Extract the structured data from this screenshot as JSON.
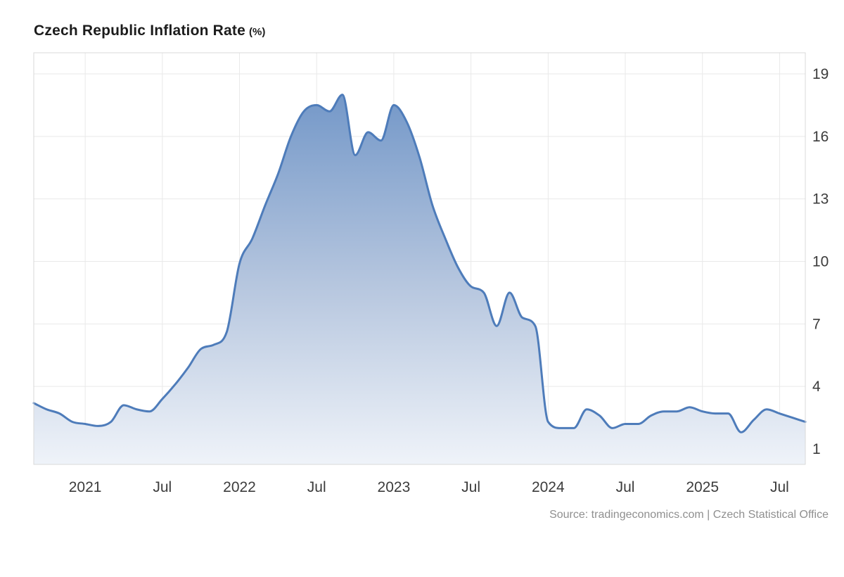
{
  "header": {
    "title": "Czech Republic Inflation Rate",
    "unit": "(%)"
  },
  "footer": {
    "source": "Source: tradingeconomics.com | Czech Statistical Office"
  },
  "chart_data": {
    "type": "area",
    "title": "Czech Republic Inflation Rate (%)",
    "series_name": "Inflation Rate",
    "frequency": "monthly",
    "period_start": "2020-09",
    "period_end": "2025-09",
    "values": [
      3.2,
      2.9,
      2.7,
      2.3,
      2.2,
      2.1,
      2.3,
      3.1,
      2.9,
      2.8,
      3.4,
      4.1,
      4.9,
      5.8,
      6.0,
      6.6,
      9.9,
      11.1,
      12.7,
      14.2,
      16.0,
      17.2,
      17.5,
      17.2,
      18.0,
      15.1,
      16.2,
      15.8,
      17.5,
      16.7,
      15.0,
      12.7,
      11.1,
      9.7,
      8.8,
      8.5,
      6.9,
      8.5,
      7.3,
      6.9,
      2.3,
      2.0,
      2.0,
      2.9,
      2.6,
      2.0,
      2.2,
      2.2,
      2.6,
      2.8,
      2.8,
      3.0,
      2.8,
      2.7,
      2.7,
      1.8,
      2.4,
      2.9,
      2.7,
      2.5,
      2.3
    ],
    "x_ticks": [
      {
        "label": "2021",
        "month_index": 4
      },
      {
        "label": "Jul",
        "month_index": 10
      },
      {
        "label": "2022",
        "month_index": 16
      },
      {
        "label": "Jul",
        "month_index": 22
      },
      {
        "label": "2023",
        "month_index": 28
      },
      {
        "label": "Jul",
        "month_index": 34
      },
      {
        "label": "2024",
        "month_index": 40
      },
      {
        "label": "Jul",
        "month_index": 46
      },
      {
        "label": "2025",
        "month_index": 52
      },
      {
        "label": "Jul",
        "month_index": 58
      }
    ],
    "y_ticks": [
      1,
      4,
      7,
      10,
      13,
      16,
      19
    ],
    "ylim": [
      0.3,
      20.0
    ],
    "xlabel": "",
    "ylabel": "",
    "grid": true,
    "legend": "none",
    "y_axis_position": "right",
    "colors": {
      "line": "#4e7cba",
      "fill_top": "#6d93c6",
      "fill_mid": "#b7c7df",
      "fill_bottom": "#eff3f9",
      "grid": "#e9e9e9",
      "border": "#d9d9d9",
      "axis_text": "#3c3c3c"
    }
  }
}
